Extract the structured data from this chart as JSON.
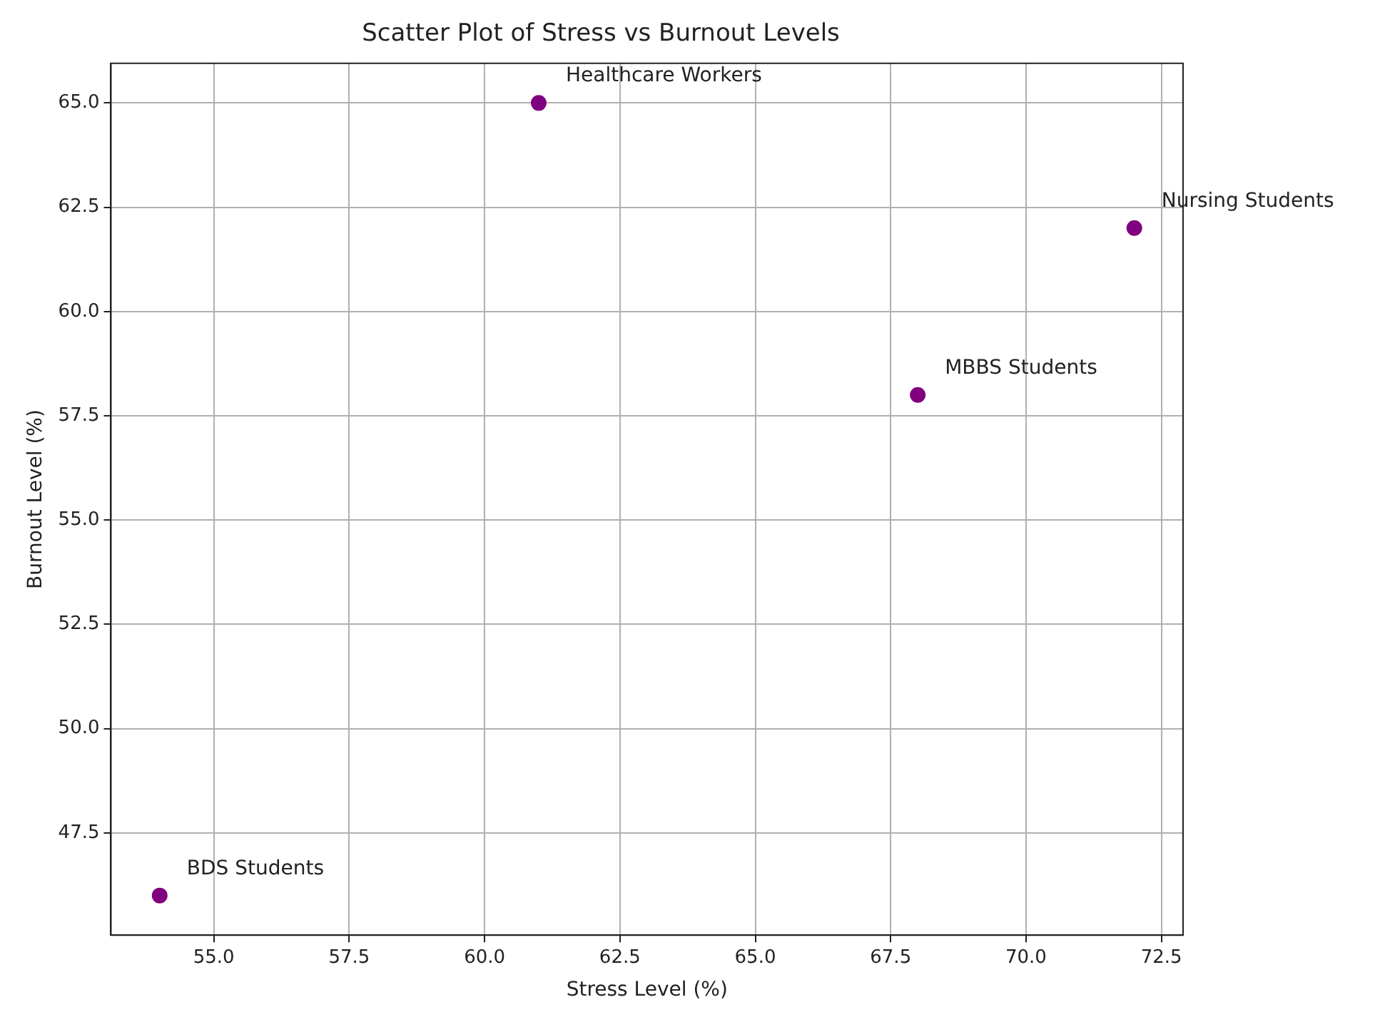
{
  "chart_data": {
    "type": "scatter",
    "title": "Scatter Plot of Stress vs Burnout Levels",
    "xlabel": "Stress Level (%)",
    "ylabel": "Burnout Level (%)",
    "x": [
      54,
      61,
      68,
      72
    ],
    "series": [
      {
        "color": "#800080",
        "values": [
          46,
          65,
          58,
          62
        ]
      }
    ],
    "xlim": [
      53.1,
      72.9
    ],
    "ylim": [
      45.05,
      65.95
    ],
    "xticks": [
      {
        "value": 55,
        "label": "55.0"
      },
      {
        "value": 57.5,
        "label": "57.5"
      },
      {
        "value": 60,
        "label": "60.0"
      },
      {
        "value": 62.5,
        "label": "62.5"
      },
      {
        "value": 65,
        "label": "65.0"
      },
      {
        "value": 67.5,
        "label": "67.5"
      },
      {
        "value": 70,
        "label": "70.0"
      },
      {
        "value": 72.5,
        "label": "72.5"
      }
    ],
    "yticks": [
      {
        "value": 47.5,
        "label": "47.5"
      },
      {
        "value": 50,
        "label": "50.0"
      },
      {
        "value": 52.5,
        "label": "52.5"
      },
      {
        "value": 55,
        "label": "55.0"
      },
      {
        "value": 57.5,
        "label": "57.5"
      },
      {
        "value": 60,
        "label": "60.0"
      },
      {
        "value": 62.5,
        "label": "62.5"
      },
      {
        "value": 65,
        "label": "65.0"
      }
    ],
    "annotations": [
      {
        "text": "BDS Students",
        "x": 54,
        "y": 46
      },
      {
        "text": "Healthcare Workers",
        "x": 61,
        "y": 65
      },
      {
        "text": "MBBS Students",
        "x": 68,
        "y": 58
      },
      {
        "text": "Nursing Students",
        "x": 72,
        "y": 62
      }
    ],
    "grid": true,
    "legend": false,
    "marker": "circle"
  }
}
